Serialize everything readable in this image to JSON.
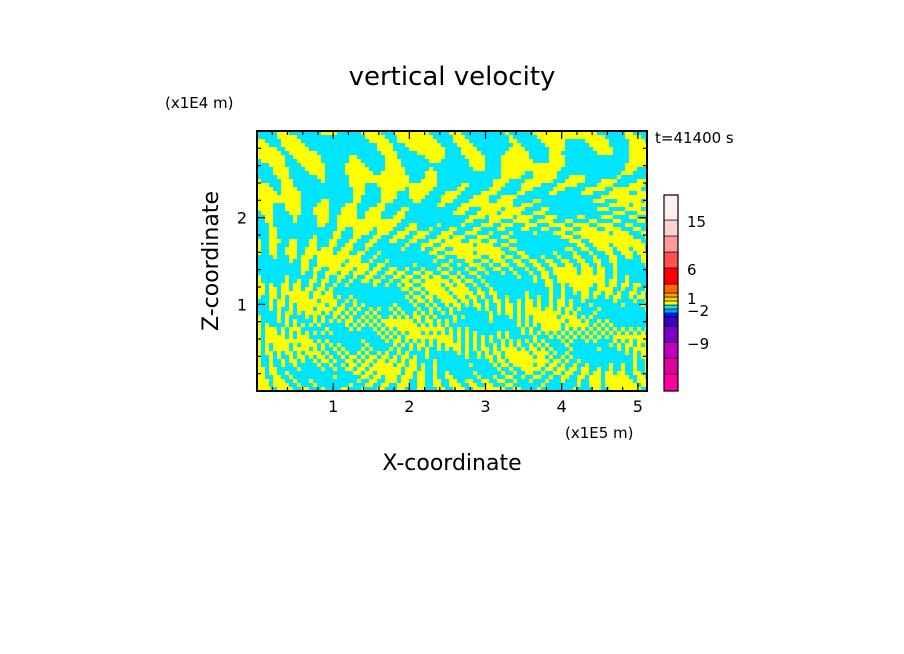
{
  "chart_data": {
    "type": "heatmap",
    "title": "vertical velocity",
    "xlabel": "X-coordinate",
    "ylabel": "Z-coordinate",
    "x_scale_label": "(x1E5 m)",
    "y_scale_label": "(x1E4 m)",
    "time_label": "t=41400 s",
    "xlim": [
      0.0,
      5.12
    ],
    "ylim": [
      0.0,
      3.0
    ],
    "x_ticks": [
      1,
      2,
      3,
      4,
      5
    ],
    "y_ticks": [
      1,
      2
    ],
    "x_tick_labels": [
      "1",
      "2",
      "3",
      "4",
      "5"
    ],
    "y_tick_labels": [
      "1",
      "2"
    ],
    "field_colors": {
      "positive": "#ffff00",
      "negative": "#00e5ff"
    },
    "colorbar": {
      "tick_labels": [
        "15",
        "6",
        "1",
        "−2",
        "−9"
      ],
      "tick_values": [
        15,
        6,
        1,
        -2,
        -9
      ],
      "levels": [
        {
          "color": "#ff00a0"
        },
        {
          "color": "#e0009a"
        },
        {
          "color": "#c000c0"
        },
        {
          "color": "#7a00c8"
        },
        {
          "color": "#3a00c8"
        },
        {
          "color": "#0014ff"
        },
        {
          "color": "#00a0ff"
        },
        {
          "color": "#00e5ff"
        },
        {
          "color": "#ffff00"
        },
        {
          "color": "#ffd200"
        },
        {
          "color": "#ffa000"
        },
        {
          "color": "#ff6400"
        },
        {
          "color": "#ff0000"
        },
        {
          "color": "#ff5050"
        },
        {
          "color": "#ff9a9a"
        },
        {
          "color": "#ffd0d0"
        },
        {
          "color": "#fff0f0"
        }
      ]
    }
  }
}
